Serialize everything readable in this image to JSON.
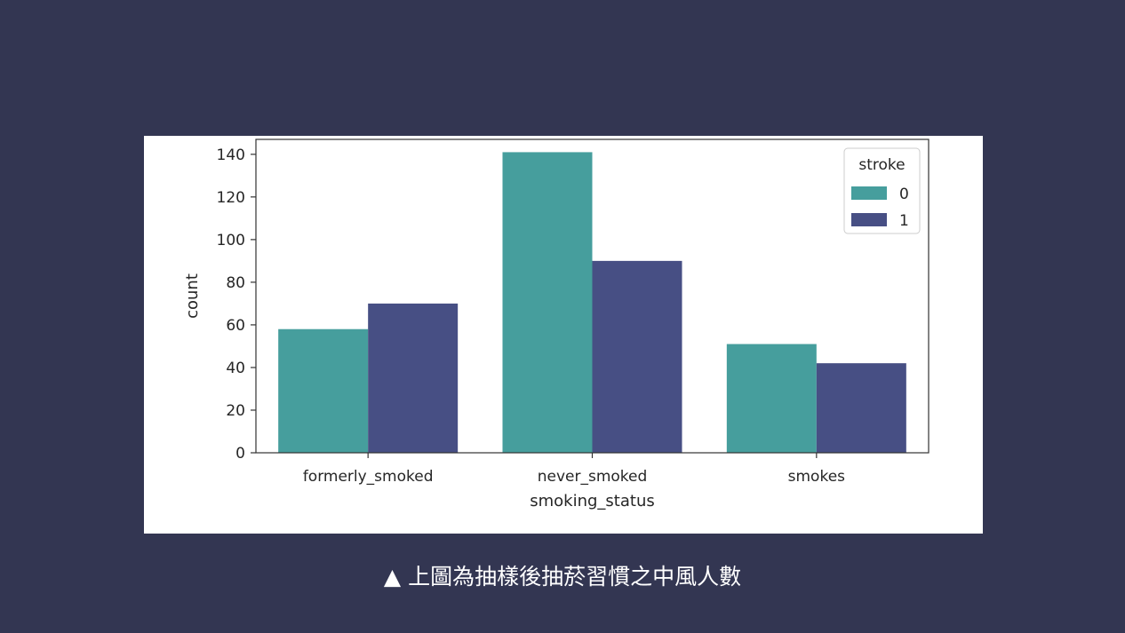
{
  "page": {
    "background": "#333652"
  },
  "caption": {
    "text": "▲ 上圖為抽樣後抽菸習慣之中風人數"
  },
  "chart_data": {
    "type": "bar",
    "categories": [
      "formerly_smoked",
      "never_smoked",
      "smokes"
    ],
    "series": [
      {
        "name": "0",
        "values": [
          58,
          141,
          51
        ],
        "color": "#469e9d"
      },
      {
        "name": "1",
        "values": [
          70,
          90,
          42
        ],
        "color": "#474f84"
      }
    ],
    "xlabel": "smoking_status",
    "ylabel": "count",
    "ylim": [
      0,
      147
    ],
    "yticks": [
      0,
      20,
      40,
      60,
      80,
      100,
      120,
      140
    ],
    "legend": {
      "title": "stroke",
      "position": "top-right"
    },
    "grid": false
  }
}
